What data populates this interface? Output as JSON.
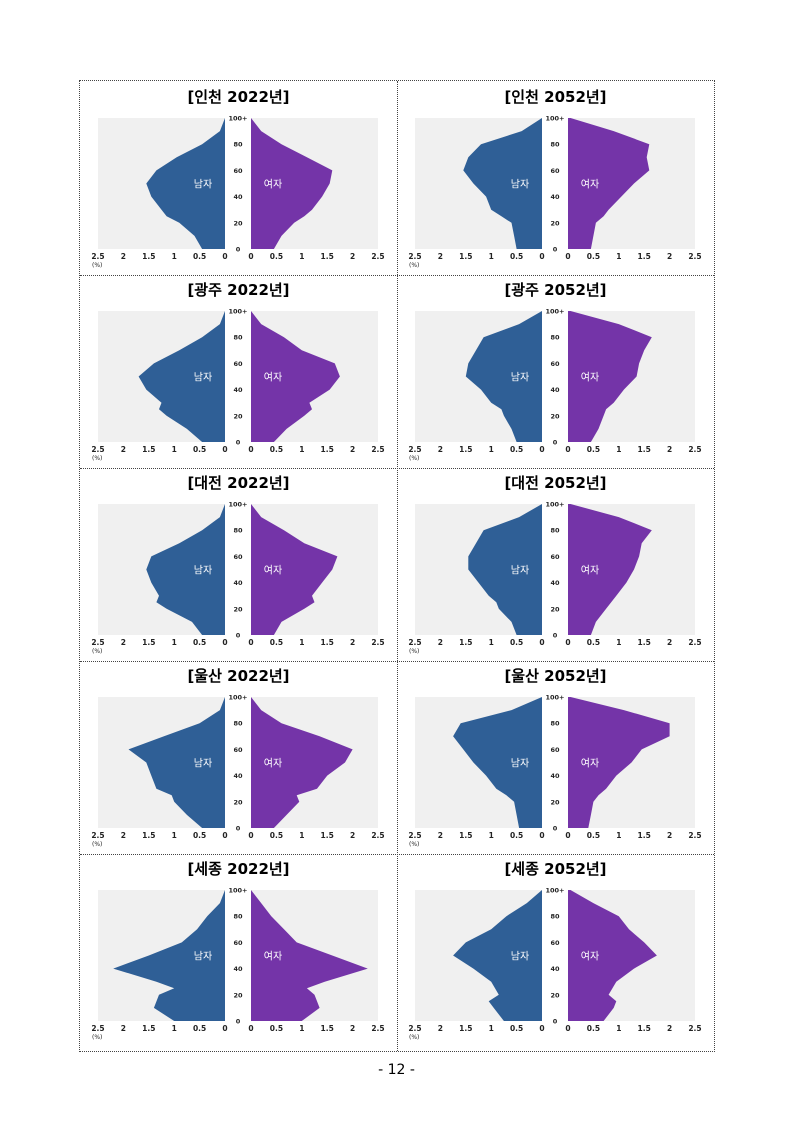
{
  "page_number": "- 12 -",
  "colors": {
    "male": "#2f5f96",
    "female": "#7434a8",
    "plot_bg": "#f0f0f0"
  },
  "chart_data": [
    {
      "type": "area",
      "title": "[인천 2022년]",
      "unit_label": "(%)",
      "series": [
        {
          "name": "남자",
          "side": "left",
          "ages": [
            0,
            10,
            20,
            25,
            30,
            40,
            50,
            60,
            70,
            80,
            90,
            100
          ],
          "values": [
            0.45,
            0.6,
            0.9,
            1.15,
            1.25,
            1.45,
            1.55,
            1.35,
            0.95,
            0.45,
            0.1,
            0.0
          ]
        },
        {
          "name": "여자",
          "side": "right",
          "ages": [
            0,
            10,
            20,
            25,
            30,
            40,
            50,
            60,
            70,
            80,
            90,
            100
          ],
          "values": [
            0.45,
            0.6,
            0.85,
            1.05,
            1.2,
            1.4,
            1.55,
            1.6,
            1.1,
            0.6,
            0.2,
            0.0
          ]
        }
      ],
      "x_ticks": [
        "2.5",
        "2",
        "1.5",
        "1",
        "0.5",
        "0",
        "0",
        "0.5",
        "1",
        "1.5",
        "2",
        "2.5"
      ],
      "y_ticks": [
        "0",
        "20",
        "40",
        "60",
        "80",
        "100+"
      ],
      "xlim": [
        0,
        2.5
      ],
      "ylim": [
        0,
        100
      ]
    },
    {
      "type": "area",
      "title": "[인천 2052년]",
      "unit_label": "(%)",
      "series": [
        {
          "name": "남자",
          "side": "left",
          "ages": [
            0,
            10,
            20,
            25,
            30,
            40,
            50,
            60,
            70,
            80,
            90,
            100
          ],
          "values": [
            0.5,
            0.55,
            0.6,
            0.8,
            1.0,
            1.1,
            1.35,
            1.55,
            1.45,
            1.2,
            0.4,
            0.0
          ]
        },
        {
          "name": "여자",
          "side": "right",
          "ages": [
            0,
            10,
            20,
            25,
            30,
            40,
            50,
            60,
            70,
            80,
            90,
            100
          ],
          "values": [
            0.45,
            0.5,
            0.55,
            0.7,
            0.8,
            1.05,
            1.3,
            1.6,
            1.55,
            1.6,
            0.9,
            0.05
          ]
        }
      ],
      "x_ticks": [
        "2.5",
        "2",
        "1.5",
        "1",
        "0.5",
        "0",
        "0",
        "0.5",
        "1",
        "1.5",
        "2",
        "2.5"
      ],
      "y_ticks": [
        "0",
        "20",
        "40",
        "60",
        "80",
        "100+"
      ],
      "xlim": [
        0,
        2.5
      ],
      "ylim": [
        0,
        100
      ]
    },
    {
      "type": "area",
      "title": "[광주 2022년]",
      "unit_label": "(%)",
      "series": [
        {
          "name": "남자",
          "side": "left",
          "ages": [
            0,
            10,
            20,
            25,
            30,
            40,
            50,
            60,
            70,
            80,
            90,
            100
          ],
          "values": [
            0.45,
            0.75,
            1.15,
            1.3,
            1.25,
            1.55,
            1.7,
            1.4,
            0.9,
            0.45,
            0.1,
            0.0
          ]
        },
        {
          "name": "여자",
          "side": "right",
          "ages": [
            0,
            10,
            20,
            25,
            30,
            40,
            50,
            60,
            70,
            80,
            90,
            100
          ],
          "values": [
            0.45,
            0.7,
            1.05,
            1.2,
            1.15,
            1.55,
            1.75,
            1.65,
            1.0,
            0.65,
            0.2,
            0.0
          ]
        }
      ],
      "x_ticks": [
        "2.5",
        "2",
        "1.5",
        "1",
        "0.5",
        "0",
        "0",
        "0.5",
        "1",
        "1.5",
        "2",
        "2.5"
      ],
      "y_ticks": [
        "0",
        "20",
        "40",
        "60",
        "80",
        "100+"
      ],
      "xlim": [
        0,
        2.5
      ],
      "ylim": [
        0,
        100
      ]
    },
    {
      "type": "area",
      "title": "[광주 2052년]",
      "unit_label": "(%)",
      "series": [
        {
          "name": "남자",
          "side": "left",
          "ages": [
            0,
            10,
            20,
            25,
            30,
            40,
            50,
            60,
            70,
            80,
            90,
            100
          ],
          "values": [
            0.5,
            0.6,
            0.75,
            0.8,
            1.0,
            1.2,
            1.5,
            1.45,
            1.3,
            1.15,
            0.45,
            0.0
          ]
        },
        {
          "name": "여자",
          "side": "right",
          "ages": [
            0,
            10,
            20,
            25,
            30,
            40,
            50,
            60,
            70,
            80,
            90,
            100
          ],
          "values": [
            0.45,
            0.6,
            0.7,
            0.75,
            0.9,
            1.1,
            1.35,
            1.4,
            1.5,
            1.65,
            1.0,
            0.05
          ]
        }
      ],
      "x_ticks": [
        "2.5",
        "2",
        "1.5",
        "1",
        "0.5",
        "0",
        "0",
        "0.5",
        "1",
        "1.5",
        "2",
        "2.5"
      ],
      "y_ticks": [
        "0",
        "20",
        "40",
        "60",
        "80",
        "100+"
      ],
      "xlim": [
        0,
        2.5
      ],
      "ylim": [
        0,
        100
      ]
    },
    {
      "type": "area",
      "title": "[대전 2022년]",
      "unit_label": "(%)",
      "series": [
        {
          "name": "남자",
          "side": "left",
          "ages": [
            0,
            10,
            20,
            25,
            30,
            40,
            50,
            60,
            70,
            80,
            90,
            100
          ],
          "values": [
            0.45,
            0.65,
            1.15,
            1.35,
            1.3,
            1.45,
            1.55,
            1.45,
            0.9,
            0.45,
            0.1,
            0.0
          ]
        },
        {
          "name": "여자",
          "side": "right",
          "ages": [
            0,
            10,
            20,
            25,
            30,
            40,
            50,
            60,
            70,
            80,
            90,
            100
          ],
          "values": [
            0.45,
            0.6,
            1.05,
            1.25,
            1.2,
            1.4,
            1.6,
            1.7,
            1.05,
            0.65,
            0.2,
            0.0
          ]
        }
      ],
      "x_ticks": [
        "2.5",
        "2",
        "1.5",
        "1",
        "0.5",
        "0",
        "0",
        "0.5",
        "1",
        "1.5",
        "2",
        "2.5"
      ],
      "y_ticks": [
        "0",
        "20",
        "40",
        "60",
        "80",
        "100+"
      ],
      "xlim": [
        0,
        2.5
      ],
      "ylim": [
        0,
        100
      ]
    },
    {
      "type": "area",
      "title": "[대전 2052년]",
      "unit_label": "(%)",
      "series": [
        {
          "name": "남자",
          "side": "left",
          "ages": [
            0,
            10,
            20,
            25,
            30,
            40,
            50,
            60,
            70,
            80,
            90,
            100
          ],
          "values": [
            0.5,
            0.6,
            0.85,
            0.9,
            1.05,
            1.25,
            1.45,
            1.45,
            1.3,
            1.15,
            0.45,
            0.0
          ]
        },
        {
          "name": "여자",
          "side": "right",
          "ages": [
            0,
            10,
            20,
            25,
            30,
            40,
            50,
            60,
            70,
            80,
            90,
            100
          ],
          "values": [
            0.45,
            0.55,
            0.75,
            0.85,
            0.95,
            1.15,
            1.3,
            1.4,
            1.45,
            1.65,
            1.0,
            0.05
          ]
        }
      ],
      "x_ticks": [
        "2.5",
        "2",
        "1.5",
        "1",
        "0.5",
        "0",
        "0",
        "0.5",
        "1",
        "1.5",
        "2",
        "2.5"
      ],
      "y_ticks": [
        "0",
        "20",
        "40",
        "60",
        "80",
        "100+"
      ],
      "xlim": [
        0,
        2.5
      ],
      "ylim": [
        0,
        100
      ]
    },
    {
      "type": "area",
      "title": "[울산 2022년]",
      "unit_label": "(%)",
      "series": [
        {
          "name": "남자",
          "side": "left",
          "ages": [
            0,
            10,
            20,
            25,
            30,
            40,
            50,
            60,
            70,
            80,
            90,
            100
          ],
          "values": [
            0.45,
            0.75,
            1.0,
            1.05,
            1.35,
            1.45,
            1.55,
            1.9,
            1.2,
            0.5,
            0.1,
            0.0
          ]
        },
        {
          "name": "여자",
          "side": "right",
          "ages": [
            0,
            10,
            20,
            25,
            30,
            40,
            50,
            60,
            70,
            80,
            90,
            100
          ],
          "values": [
            0.45,
            0.7,
            0.95,
            0.9,
            1.3,
            1.5,
            1.85,
            2.0,
            1.35,
            0.6,
            0.2,
            0.0
          ]
        }
      ],
      "x_ticks": [
        "2.5",
        "2",
        "1.5",
        "1",
        "0.5",
        "0",
        "0",
        "0.5",
        "1",
        "1.5",
        "2",
        "2.5"
      ],
      "y_ticks": [
        "0",
        "20",
        "40",
        "60",
        "80",
        "100+"
      ],
      "xlim": [
        0,
        2.5
      ],
      "ylim": [
        0,
        100
      ]
    },
    {
      "type": "area",
      "title": "[울산 2052년]",
      "unit_label": "(%)",
      "series": [
        {
          "name": "남자",
          "side": "left",
          "ages": [
            0,
            10,
            20,
            25,
            30,
            40,
            50,
            60,
            70,
            80,
            90,
            100
          ],
          "values": [
            0.45,
            0.5,
            0.55,
            0.7,
            0.9,
            1.1,
            1.35,
            1.55,
            1.75,
            1.6,
            0.6,
            0.0
          ]
        },
        {
          "name": "여자",
          "side": "right",
          "ages": [
            0,
            10,
            20,
            25,
            30,
            40,
            50,
            60,
            70,
            80,
            90,
            100
          ],
          "values": [
            0.4,
            0.45,
            0.5,
            0.6,
            0.75,
            0.95,
            1.25,
            1.45,
            2.0,
            2.0,
            1.1,
            0.05
          ]
        }
      ],
      "x_ticks": [
        "2.5",
        "2",
        "1.5",
        "1",
        "0.5",
        "0",
        "0",
        "0.5",
        "1",
        "1.5",
        "2",
        "2.5"
      ],
      "y_ticks": [
        "0",
        "20",
        "40",
        "60",
        "80",
        "100+"
      ],
      "xlim": [
        0,
        2.5
      ],
      "ylim": [
        0,
        100
      ]
    },
    {
      "type": "area",
      "title": "[세종 2022년]",
      "unit_label": "(%)",
      "series": [
        {
          "name": "남자",
          "side": "left",
          "ages": [
            0,
            10,
            20,
            25,
            30,
            40,
            50,
            60,
            70,
            80,
            90,
            100
          ],
          "values": [
            1.0,
            1.4,
            1.3,
            1.0,
            1.35,
            2.2,
            1.5,
            0.85,
            0.55,
            0.35,
            0.1,
            0.0
          ]
        },
        {
          "name": "여자",
          "side": "right",
          "ages": [
            0,
            10,
            20,
            25,
            30,
            40,
            50,
            60,
            70,
            80,
            90,
            100
          ],
          "values": [
            1.0,
            1.35,
            1.25,
            1.1,
            1.45,
            2.3,
            1.6,
            0.9,
            0.65,
            0.4,
            0.2,
            0.0
          ]
        }
      ],
      "x_ticks": [
        "2.5",
        "2",
        "1.5",
        "1",
        "0.5",
        "0",
        "0",
        "0.5",
        "1",
        "1.5",
        "2",
        "2.5"
      ],
      "y_ticks": [
        "0",
        "20",
        "40",
        "60",
        "80",
        "100+"
      ],
      "xlim": [
        0,
        2.5
      ],
      "ylim": [
        0,
        100
      ]
    },
    {
      "type": "area",
      "title": "[세종 2052년]",
      "unit_label": "(%)",
      "series": [
        {
          "name": "남자",
          "side": "left",
          "ages": [
            0,
            10,
            15,
            20,
            30,
            40,
            50,
            60,
            70,
            80,
            90,
            100
          ],
          "values": [
            0.75,
            0.95,
            1.05,
            0.85,
            1.0,
            1.35,
            1.75,
            1.5,
            1.0,
            0.7,
            0.3,
            0.0
          ]
        },
        {
          "name": "여자",
          "side": "right",
          "ages": [
            0,
            10,
            15,
            20,
            30,
            40,
            50,
            60,
            70,
            80,
            90,
            100
          ],
          "values": [
            0.7,
            0.9,
            0.95,
            0.8,
            0.95,
            1.3,
            1.75,
            1.5,
            1.2,
            1.0,
            0.5,
            0.05
          ]
        }
      ],
      "x_ticks": [
        "2.5",
        "2",
        "1.5",
        "1",
        "0.5",
        "0",
        "0",
        "0.5",
        "1",
        "1.5",
        "2",
        "2.5"
      ],
      "y_ticks": [
        "0",
        "20",
        "40",
        "60",
        "80",
        "100+"
      ],
      "xlim": [
        0,
        2.5
      ],
      "ylim": [
        0,
        100
      ]
    }
  ]
}
